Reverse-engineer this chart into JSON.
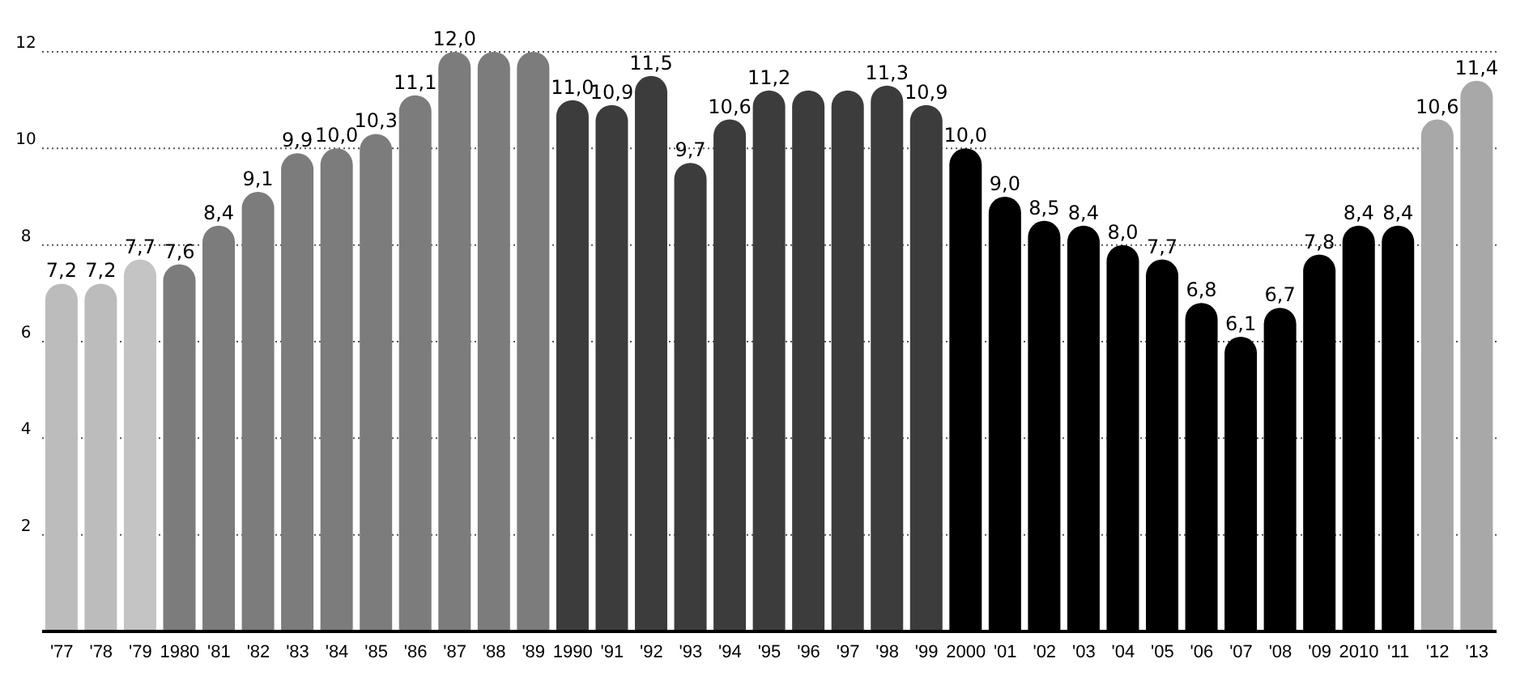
{
  "chart_data": {
    "type": "bar",
    "categories": [
      "'77",
      "'78",
      "'79",
      "1980",
      "'81",
      "'82",
      "'83",
      "'84",
      "'85",
      "'86",
      "'87",
      "'88",
      "'89",
      "1990",
      "'91",
      "'92",
      "'93",
      "'94",
      "'95",
      "'96",
      "'97",
      "'98",
      "'99",
      "2000",
      "'01",
      "'02",
      "'03",
      "'04",
      "'05",
      "'06",
      "'07",
      "'08",
      "'09",
      "2010",
      "'11",
      "'12",
      "'13"
    ],
    "values": [
      7.2,
      7.2,
      7.7,
      7.6,
      8.4,
      9.1,
      9.9,
      10.0,
      10.3,
      11.1,
      12.0,
      12.0,
      12.0,
      11.0,
      10.9,
      11.5,
      9.7,
      10.6,
      11.2,
      11.2,
      11.2,
      11.3,
      10.9,
      10.0,
      9.0,
      8.5,
      8.4,
      8.0,
      7.7,
      6.8,
      6.1,
      6.7,
      7.8,
      8.4,
      8.4,
      10.6,
      11.4
    ],
    "value_labels": [
      "7,2",
      "7,2",
      "7,7",
      "7,6",
      "8,4",
      "9,1",
      "9,9",
      "10,0",
      "10,3",
      "11,1",
      "12,0",
      null,
      null,
      "11,0",
      "10,9",
      "11,5",
      "9,7",
      "10,6",
      "11,2",
      null,
      null,
      "11,3",
      "10,9",
      "10,0",
      "9,0",
      "8,5",
      "8,4",
      "8,0",
      "7,7",
      "6,8",
      "6,1",
      "6,7",
      "7,8",
      "8,4",
      "8,4",
      "10,6",
      "11,4"
    ],
    "colors": [
      "#bcbcbc",
      "#bcbcbc",
      "#c4c4c4",
      "#7c7c7c",
      "#7c7c7c",
      "#7c7c7c",
      "#7c7c7c",
      "#7c7c7c",
      "#7c7c7c",
      "#7c7c7c",
      "#7c7c7c",
      "#7c7c7c",
      "#7c7c7c",
      "#3c3c3c",
      "#3c3c3c",
      "#3c3c3c",
      "#3c3c3c",
      "#3c3c3c",
      "#3c3c3c",
      "#3c3c3c",
      "#3c3c3c",
      "#3c3c3c",
      "#3c3c3c",
      "#000000",
      "#000000",
      "#000000",
      "#000000",
      "#000000",
      "#000000",
      "#000000",
      "#000000",
      "#000000",
      "#000000",
      "#000000",
      "#000000",
      "#a8a8a8",
      "#a8a8a8"
    ],
    "ylim": [
      0,
      12
    ],
    "yticks": [
      2,
      4,
      6,
      8,
      10,
      12
    ],
    "grid": "y"
  }
}
